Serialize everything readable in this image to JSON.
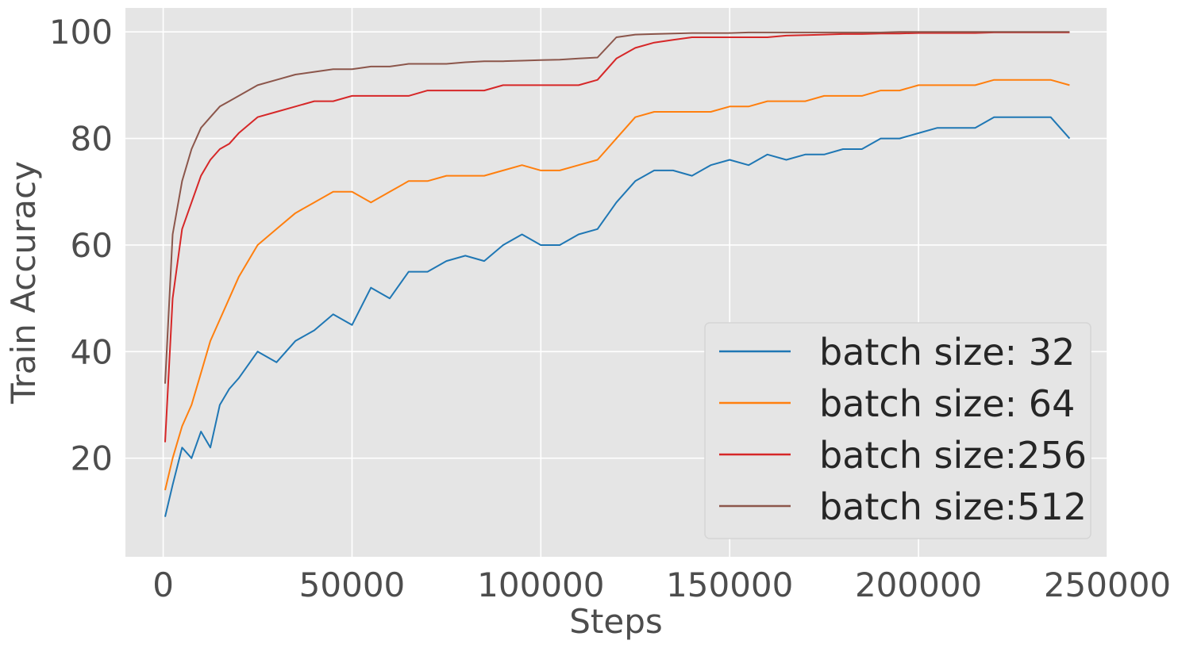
{
  "chart_data": {
    "type": "line",
    "title": "",
    "xlabel": "Steps",
    "ylabel": "Train Accuracy",
    "xlim": [
      -10000,
      250000
    ],
    "ylim": [
      1.5,
      104.5
    ],
    "xticks": [
      0,
      50000,
      100000,
      150000,
      200000,
      250000
    ],
    "xtick_labels": [
      "0",
      "50000",
      "100000",
      "150000",
      "200000",
      "250000"
    ],
    "yticks": [
      20,
      40,
      60,
      80,
      100
    ],
    "ytick_labels": [
      "20",
      "40",
      "60",
      "80",
      "100"
    ],
    "grid": true,
    "legend_position": "bottom-right",
    "background": "#e5e5e5",
    "series": [
      {
        "name": "batch size: 32",
        "color": "#1f77b4",
        "x": [
          500,
          2500,
          5000,
          7500,
          10000,
          12500,
          15000,
          17500,
          20000,
          25000,
          30000,
          35000,
          40000,
          45000,
          50000,
          55000,
          60000,
          65000,
          70000,
          75000,
          80000,
          85000,
          90000,
          95000,
          100000,
          105000,
          110000,
          115000,
          120000,
          125000,
          130000,
          135000,
          140000,
          145000,
          150000,
          155000,
          160000,
          165000,
          170000,
          175000,
          180000,
          185000,
          190000,
          195000,
          200000,
          205000,
          210000,
          215000,
          220000,
          225000,
          230000,
          235000,
          240000
        ],
        "y": [
          9,
          15,
          22,
          20,
          25,
          22,
          30,
          33,
          35,
          40,
          38,
          42,
          44,
          47,
          45,
          52,
          50,
          55,
          55,
          57,
          58,
          57,
          60,
          62,
          60,
          60,
          62,
          63,
          68,
          72,
          74,
          74,
          73,
          75,
          76,
          75,
          77,
          76,
          77,
          77,
          78,
          78,
          80,
          80,
          81,
          82,
          82,
          82,
          84,
          84,
          84,
          84,
          80
        ]
      },
      {
        "name": "batch size: 64",
        "color": "#ff7f0e",
        "x": [
          500,
          2500,
          5000,
          7500,
          10000,
          12500,
          15000,
          17500,
          20000,
          25000,
          30000,
          35000,
          40000,
          45000,
          50000,
          55000,
          60000,
          65000,
          70000,
          75000,
          80000,
          85000,
          90000,
          95000,
          100000,
          105000,
          110000,
          115000,
          120000,
          125000,
          130000,
          135000,
          140000,
          145000,
          150000,
          155000,
          160000,
          165000,
          170000,
          175000,
          180000,
          185000,
          190000,
          195000,
          200000,
          205000,
          210000,
          215000,
          220000,
          225000,
          230000,
          235000,
          240000
        ],
        "y": [
          14,
          20,
          26,
          30,
          36,
          42,
          46,
          50,
          54,
          60,
          63,
          66,
          68,
          70,
          70,
          68,
          70,
          72,
          72,
          73,
          73,
          73,
          74,
          75,
          74,
          74,
          75,
          76,
          80,
          84,
          85,
          85,
          85,
          85,
          86,
          86,
          87,
          87,
          87,
          88,
          88,
          88,
          89,
          89,
          90,
          90,
          90,
          90,
          91,
          91,
          91,
          91,
          90
        ]
      },
      {
        "name": "batch size:256",
        "color": "#d62728",
        "x": [
          500,
          2500,
          5000,
          7500,
          10000,
          12500,
          15000,
          17500,
          20000,
          25000,
          30000,
          35000,
          40000,
          45000,
          50000,
          55000,
          60000,
          65000,
          70000,
          75000,
          80000,
          85000,
          90000,
          95000,
          100000,
          105000,
          110000,
          115000,
          120000,
          125000,
          130000,
          135000,
          140000,
          145000,
          150000,
          155000,
          160000,
          165000,
          170000,
          175000,
          180000,
          185000,
          190000,
          195000,
          200000,
          205000,
          210000,
          215000,
          220000,
          225000,
          230000,
          235000,
          240000
        ],
        "y": [
          23,
          50,
          63,
          68,
          73,
          76,
          78,
          79,
          81,
          84,
          85,
          86,
          87,
          87,
          88,
          88,
          88,
          88,
          89,
          89,
          89,
          89,
          90,
          90,
          90,
          90,
          90,
          91,
          95,
          97,
          98,
          98.5,
          99,
          99,
          99,
          99,
          99,
          99.3,
          99.4,
          99.5,
          99.6,
          99.6,
          99.7,
          99.7,
          99.8,
          99.8,
          99.8,
          99.8,
          99.9,
          99.9,
          99.9,
          99.9,
          99.9
        ]
      },
      {
        "name": "batch size:512",
        "color": "#8c564b",
        "x": [
          500,
          2500,
          5000,
          7500,
          10000,
          12500,
          15000,
          17500,
          20000,
          25000,
          30000,
          35000,
          40000,
          45000,
          50000,
          55000,
          60000,
          65000,
          70000,
          75000,
          80000,
          85000,
          90000,
          95000,
          100000,
          105000,
          110000,
          115000,
          120000,
          125000,
          130000,
          135000,
          140000,
          145000,
          150000,
          155000,
          160000,
          165000,
          170000,
          175000,
          180000,
          185000,
          190000,
          195000,
          200000,
          205000,
          210000,
          215000,
          220000,
          225000,
          230000,
          235000,
          240000
        ],
        "y": [
          34,
          62,
          72,
          78,
          82,
          84,
          86,
          87,
          88,
          90,
          91,
          92,
          92.5,
          93,
          93,
          93.5,
          93.5,
          94,
          94,
          94,
          94.3,
          94.5,
          94.5,
          94.6,
          94.7,
          94.8,
          95,
          95.2,
          99,
          99.5,
          99.6,
          99.7,
          99.8,
          99.8,
          99.8,
          99.9,
          99.9,
          99.9,
          99.9,
          99.9,
          99.9,
          99.9,
          99.9,
          100,
          100,
          100,
          100,
          100,
          100,
          100,
          100,
          100,
          100
        ]
      }
    ]
  }
}
